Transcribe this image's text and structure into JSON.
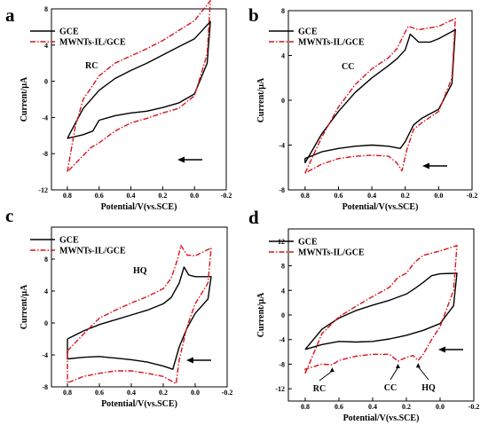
{
  "colors": {
    "gce": "#000000",
    "mwnt": "#d9141b"
  },
  "chart_data": [
    {
      "panel": "a",
      "type": "line",
      "xlabel": "Potential/V(vs.SCE)",
      "ylabel": "Current/µA",
      "xlim": [
        0.9,
        -0.2
      ],
      "ylim": [
        -12,
        8
      ],
      "xticks": [
        "0.8",
        "0.6",
        "0.4",
        "0.2",
        "0.0",
        "-0.2"
      ],
      "yticks": [
        "-12",
        "-8",
        "-4",
        "0",
        "4",
        "8"
      ],
      "label": "RC",
      "legend": {
        "position": "top-left",
        "entries": [
          "GCE",
          "MWNTs-IL/GCE"
        ]
      },
      "series": [
        {
          "name": "GCE",
          "style": "solid",
          "forward": [
            [
              0.8,
              -6.3
            ],
            [
              0.7,
              -3.0
            ],
            [
              0.6,
              -1.0
            ],
            [
              0.5,
              0.3
            ],
            [
              0.4,
              1.2
            ],
            [
              0.3,
              2.0
            ],
            [
              0.2,
              2.9
            ],
            [
              0.1,
              3.8
            ],
            [
              0.0,
              4.7
            ],
            [
              -0.1,
              6.6
            ]
          ],
          "reverse": [
            [
              -0.1,
              6.6
            ],
            [
              -0.08,
              2.0
            ],
            [
              0.0,
              -1.4
            ],
            [
              0.1,
              -2.4
            ],
            [
              0.2,
              -2.9
            ],
            [
              0.3,
              -3.3
            ],
            [
              0.4,
              -3.5
            ],
            [
              0.5,
              -3.8
            ],
            [
              0.6,
              -4.3
            ],
            [
              0.64,
              -5.5
            ],
            [
              0.7,
              -5.9
            ],
            [
              0.8,
              -6.3
            ]
          ]
        },
        {
          "name": "MWNTs-IL/GCE",
          "style": "dashdot",
          "forward": [
            [
              0.8,
              -10.0
            ],
            [
              0.75,
              -5.0
            ],
            [
              0.7,
              -2.0
            ],
            [
              0.6,
              0.6
            ],
            [
              0.5,
              2.0
            ],
            [
              0.4,
              2.8
            ],
            [
              0.3,
              3.6
            ],
            [
              0.2,
              4.5
            ],
            [
              0.1,
              5.6
            ],
            [
              0.0,
              6.7
            ],
            [
              -0.1,
              8.9
            ]
          ],
          "reverse": [
            [
              -0.1,
              8.9
            ],
            [
              -0.08,
              3.0
            ],
            [
              0.0,
              -1.6
            ],
            [
              0.1,
              -3.0
            ],
            [
              0.2,
              -3.5
            ],
            [
              0.3,
              -4.1
            ],
            [
              0.4,
              -4.6
            ],
            [
              0.5,
              -5.5
            ],
            [
              0.6,
              -6.8
            ],
            [
              0.65,
              -7.3
            ],
            [
              0.7,
              -8.2
            ],
            [
              0.8,
              -10.0
            ]
          ]
        }
      ]
    },
    {
      "panel": "b",
      "type": "line",
      "xlabel": "Potential/V(vs.SCE)",
      "ylabel": "Current/µA",
      "xlim": [
        0.9,
        -0.2
      ],
      "ylim": [
        -8,
        8
      ],
      "xticks": [
        "0.8",
        "0.6",
        "0.4",
        "0.2",
        "0.0",
        "-0.2"
      ],
      "yticks": [
        "-8",
        "-4",
        "0",
        "4",
        "8"
      ],
      "label": "CC",
      "legend": {
        "position": "top-left",
        "entries": [
          "GCE",
          "MWNTs-IL/GCE"
        ]
      },
      "series": [
        {
          "name": "GCE",
          "style": "solid",
          "forward": [
            [
              0.8,
              -5.6
            ],
            [
              0.7,
              -3.0
            ],
            [
              0.6,
              -1.0
            ],
            [
              0.5,
              0.7
            ],
            [
              0.4,
              2.0
            ],
            [
              0.3,
              3.1
            ],
            [
              0.25,
              3.7
            ],
            [
              0.2,
              4.5
            ],
            [
              0.17,
              5.9
            ],
            [
              0.12,
              5.2
            ],
            [
              0.05,
              5.2
            ],
            [
              0.0,
              5.5
            ],
            [
              -0.1,
              6.3
            ]
          ],
          "reverse": [
            [
              -0.1,
              6.3
            ],
            [
              -0.08,
              1.5
            ],
            [
              0.0,
              -0.8
            ],
            [
              0.1,
              -1.6
            ],
            [
              0.15,
              -2.2
            ],
            [
              0.2,
              -3.7
            ],
            [
              0.23,
              -4.3
            ],
            [
              0.3,
              -4.1
            ],
            [
              0.4,
              -4.0
            ],
            [
              0.5,
              -4.1
            ],
            [
              0.6,
              -4.3
            ],
            [
              0.7,
              -4.6
            ],
            [
              0.8,
              -5.2
            ],
            [
              0.8,
              -5.6
            ]
          ]
        },
        {
          "name": "MWNTs-IL/GCE",
          "style": "dashdot",
          "forward": [
            [
              0.8,
              -6.5
            ],
            [
              0.7,
              -3.3
            ],
            [
              0.6,
              -0.6
            ],
            [
              0.5,
              1.4
            ],
            [
              0.4,
              2.8
            ],
            [
              0.3,
              3.8
            ],
            [
              0.25,
              4.6
            ],
            [
              0.2,
              6.1
            ],
            [
              0.18,
              6.6
            ],
            [
              0.12,
              6.3
            ],
            [
              0.0,
              6.6
            ],
            [
              -0.1,
              7.3
            ]
          ],
          "reverse": [
            [
              -0.1,
              7.3
            ],
            [
              -0.08,
              2.0
            ],
            [
              0.0,
              -1.0
            ],
            [
              0.1,
              -2.0
            ],
            [
              0.15,
              -2.6
            ],
            [
              0.19,
              -4.4
            ],
            [
              0.22,
              -6.3
            ],
            [
              0.25,
              -5.6
            ],
            [
              0.3,
              -5.0
            ],
            [
              0.4,
              -4.9
            ],
            [
              0.5,
              -5.0
            ],
            [
              0.6,
              -5.2
            ],
            [
              0.7,
              -5.7
            ],
            [
              0.8,
              -6.5
            ]
          ]
        }
      ]
    },
    {
      "panel": "c",
      "type": "line",
      "xlabel": "Potential/V(vs.SCE)",
      "ylabel": "Current/µA",
      "xlim": [
        0.9,
        -0.2
      ],
      "ylim": [
        -8,
        12
      ],
      "xticks": [
        "0.8",
        "0.6",
        "0.4",
        "0.2",
        "0.0",
        "-0.2"
      ],
      "yticks": [
        "-8",
        "-4",
        "0",
        "4",
        "8"
      ],
      "label": "HQ",
      "legend": {
        "position": "top-left",
        "entries": [
          "GCE",
          "MWNTs-IL/GCE"
        ]
      },
      "series": [
        {
          "name": "GCE",
          "style": "solid",
          "forward": [
            [
              0.8,
              -2.0
            ],
            [
              0.7,
              -1.0
            ],
            [
              0.6,
              -0.2
            ],
            [
              0.5,
              0.4
            ],
            [
              0.4,
              1.0
            ],
            [
              0.3,
              1.6
            ],
            [
              0.2,
              2.4
            ],
            [
              0.15,
              3.2
            ],
            [
              0.1,
              5.0
            ],
            [
              0.07,
              7.0
            ],
            [
              0.04,
              6.0
            ],
            [
              0.0,
              5.8
            ],
            [
              -0.1,
              5.8
            ]
          ],
          "reverse": [
            [
              -0.1,
              5.8
            ],
            [
              -0.08,
              3.0
            ],
            [
              0.0,
              1.2
            ],
            [
              0.05,
              -0.6
            ],
            [
              0.1,
              -3.0
            ],
            [
              0.14,
              -5.8
            ],
            [
              0.2,
              -5.4
            ],
            [
              0.3,
              -4.9
            ],
            [
              0.4,
              -4.6
            ],
            [
              0.5,
              -4.4
            ],
            [
              0.6,
              -4.2
            ],
            [
              0.7,
              -4.3
            ],
            [
              0.8,
              -4.5
            ],
            [
              0.8,
              -2.0
            ]
          ]
        },
        {
          "name": "MWNTs-IL/GCE",
          "style": "dashdot",
          "forward": [
            [
              0.8,
              -3.5
            ],
            [
              0.7,
              -1.4
            ],
            [
              0.6,
              0.6
            ],
            [
              0.5,
              1.6
            ],
            [
              0.4,
              2.5
            ],
            [
              0.3,
              3.3
            ],
            [
              0.2,
              4.3
            ],
            [
              0.15,
              5.6
            ],
            [
              0.11,
              8.0
            ],
            [
              0.09,
              9.7
            ],
            [
              0.05,
              8.5
            ],
            [
              0.0,
              8.4
            ],
            [
              -0.1,
              9.4
            ]
          ],
          "reverse": [
            [
              -0.1,
              9.4
            ],
            [
              -0.08,
              5.0
            ],
            [
              0.0,
              2.4
            ],
            [
              0.05,
              -0.4
            ],
            [
              0.1,
              -4.6
            ],
            [
              0.12,
              -7.6
            ],
            [
              0.2,
              -6.7
            ],
            [
              0.3,
              -6.3
            ],
            [
              0.4,
              -6.0
            ],
            [
              0.5,
              -6.0
            ],
            [
              0.6,
              -6.3
            ],
            [
              0.7,
              -6.7
            ],
            [
              0.8,
              -7.5
            ],
            [
              0.8,
              -3.5
            ]
          ]
        }
      ]
    },
    {
      "panel": "d",
      "type": "line",
      "xlabel": "Potential/V(vs.SCE)",
      "ylabel": "Current/µA",
      "xlim": [
        0.9,
        -0.2
      ],
      "ylim": [
        -14,
        14
      ],
      "xticks": [
        "0.8",
        "0.6",
        "0.4",
        "0.2",
        "0.0",
        "-0.2"
      ],
      "yticks": [
        "-12",
        "-8",
        "-4",
        "0",
        "4",
        "8",
        "12"
      ],
      "legend": {
        "position": "top-left",
        "entries": [
          "GCE",
          "MWNTs-IL/GCE"
        ]
      },
      "annotations": [
        "RC",
        "CC",
        "HQ"
      ],
      "series": [
        {
          "name": "GCE",
          "style": "solid",
          "forward": [
            [
              0.8,
              -5.6
            ],
            [
              0.7,
              -2.3
            ],
            [
              0.6,
              -0.5
            ],
            [
              0.5,
              0.7
            ],
            [
              0.4,
              1.6
            ],
            [
              0.3,
              2.4
            ],
            [
              0.2,
              3.4
            ],
            [
              0.15,
              4.3
            ],
            [
              0.1,
              5.3
            ],
            [
              0.05,
              6.4
            ],
            [
              0.0,
              6.7
            ],
            [
              -0.1,
              6.8
            ]
          ],
          "reverse": [
            [
              -0.1,
              6.8
            ],
            [
              -0.08,
              1.5
            ],
            [
              0.0,
              -1.4
            ],
            [
              0.1,
              -2.5
            ],
            [
              0.2,
              -3.3
            ],
            [
              0.3,
              -3.9
            ],
            [
              0.4,
              -4.3
            ],
            [
              0.5,
              -4.4
            ],
            [
              0.6,
              -4.3
            ],
            [
              0.7,
              -4.8
            ],
            [
              0.8,
              -5.6
            ]
          ]
        },
        {
          "name": "MWNTs-IL/GCE",
          "style": "dashdot",
          "forward": [
            [
              0.8,
              -9.5
            ],
            [
              0.7,
              -3.0
            ],
            [
              0.6,
              -0.3
            ],
            [
              0.5,
              1.4
            ],
            [
              0.4,
              3.0
            ],
            [
              0.3,
              4.5
            ],
            [
              0.25,
              6.1
            ],
            [
              0.2,
              6.8
            ],
            [
              0.15,
              8.6
            ],
            [
              0.1,
              9.7
            ],
            [
              0.0,
              10.4
            ],
            [
              -0.1,
              11.3
            ]
          ],
          "reverse": [
            [
              -0.1,
              11.3
            ],
            [
              -0.08,
              4.0
            ],
            [
              0.0,
              -1.9
            ],
            [
              0.05,
              -4.0
            ],
            [
              0.1,
              -6.4
            ],
            [
              0.13,
              -7.4
            ],
            [
              0.16,
              -6.6
            ],
            [
              0.2,
              -6.9
            ],
            [
              0.25,
              -7.5
            ],
            [
              0.3,
              -6.4
            ],
            [
              0.4,
              -6.4
            ],
            [
              0.5,
              -6.7
            ],
            [
              0.6,
              -7.4
            ],
            [
              0.64,
              -8.1
            ],
            [
              0.7,
              -8.0
            ],
            [
              0.8,
              -8.8
            ],
            [
              0.8,
              -9.5
            ]
          ]
        }
      ]
    }
  ]
}
